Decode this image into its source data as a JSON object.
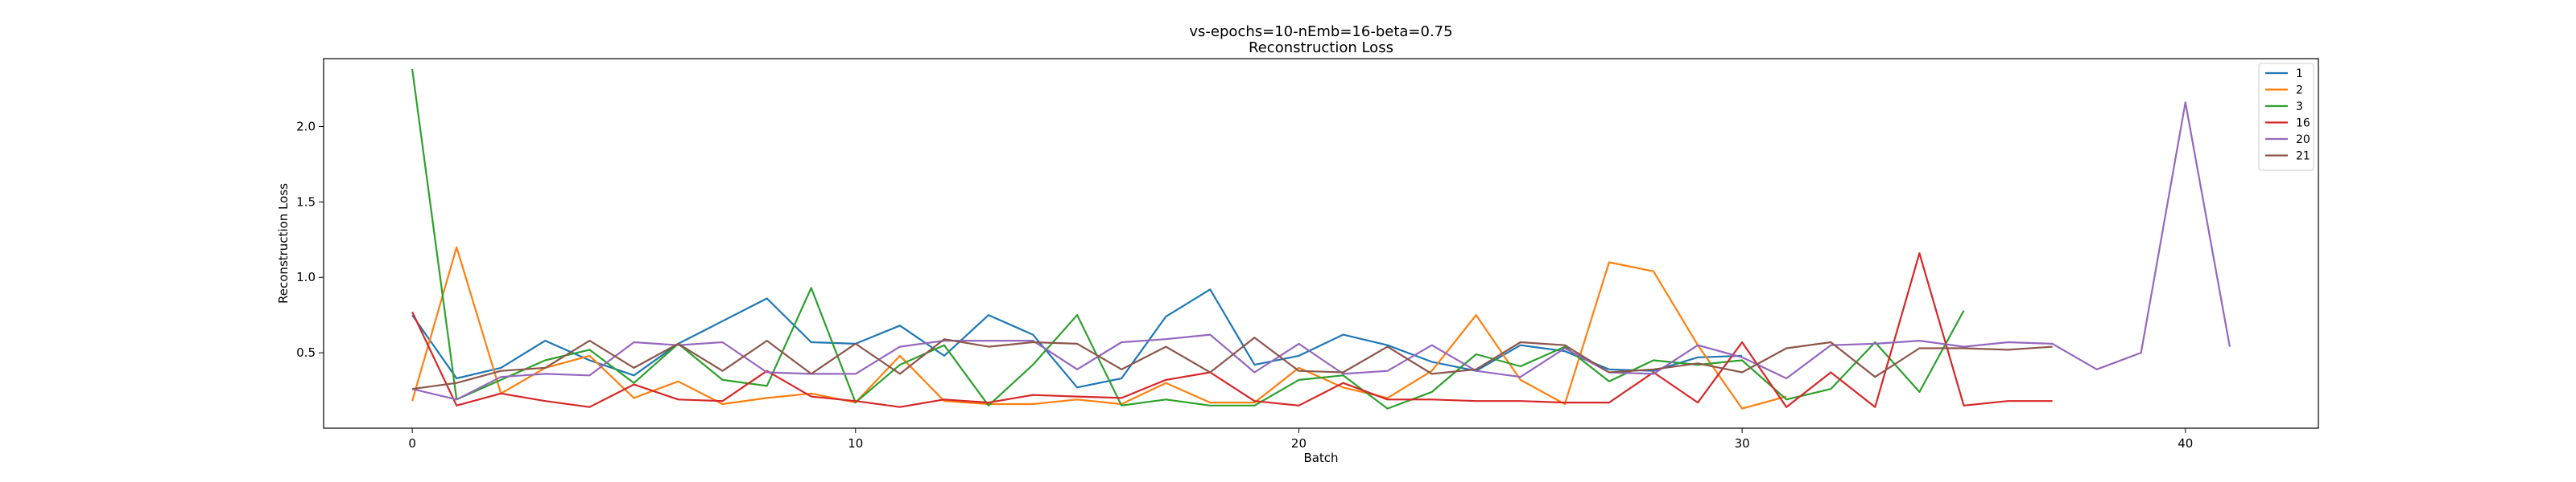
{
  "chart_data": {
    "type": "line",
    "title": "vs-epochs=10-nEmb=16-beta=0.75",
    "subtitle": "Reconstruction Loss",
    "xlabel": "Batch",
    "ylabel": "Reconstruction Loss",
    "xlim": [
      -2,
      43
    ],
    "ylim": [
      0.0,
      2.45
    ],
    "xticks": [
      "0",
      "10",
      "20",
      "30",
      "40"
    ],
    "yticks": [
      "0.5",
      "1.0",
      "1.5",
      "2.0"
    ],
    "xtick_values": [
      0,
      10,
      20,
      30,
      40
    ],
    "ytick_values": [
      0.5,
      1.0,
      1.5,
      2.0
    ],
    "grid": false,
    "legend_position": "top-right",
    "series": [
      {
        "name": "1",
        "color": "#1f77b4",
        "values": [
          0.75,
          0.33,
          0.4,
          0.58,
          0.45,
          0.35,
          0.56,
          0.71,
          0.86,
          0.57,
          0.56,
          0.68,
          0.48,
          0.75,
          0.62,
          0.27,
          0.33,
          0.74,
          0.92,
          0.42,
          0.48,
          0.62,
          0.55,
          0.44,
          0.38,
          0.55,
          0.51,
          0.39,
          0.38,
          0.47,
          0.48
        ]
      },
      {
        "name": "2",
        "color": "#ff7f0e",
        "values": [
          0.18,
          1.2,
          0.23,
          0.4,
          0.48,
          0.2,
          0.31,
          0.16,
          0.2,
          0.23,
          0.17,
          0.48,
          0.18,
          0.16,
          0.16,
          0.19,
          0.16,
          0.3,
          0.17,
          0.17,
          0.4,
          0.27,
          0.2,
          0.38,
          0.75,
          0.32,
          0.16,
          1.1,
          1.04,
          0.55,
          0.13,
          0.21
        ]
      },
      {
        "name": "3",
        "color": "#2ca02c",
        "values": [
          2.38,
          0.19,
          0.32,
          0.45,
          0.52,
          0.3,
          0.56,
          0.32,
          0.28,
          0.93,
          0.17,
          0.42,
          0.55,
          0.15,
          0.42,
          0.75,
          0.15,
          0.19,
          0.15,
          0.15,
          0.32,
          0.35,
          0.13,
          0.24,
          0.49,
          0.41,
          0.54,
          0.31,
          0.45,
          0.42,
          0.45,
          0.19,
          0.26,
          0.57,
          0.24,
          0.78
        ]
      },
      {
        "name": "16",
        "color": "#d62728",
        "values": [
          0.77,
          0.15,
          0.23,
          0.18,
          0.14,
          0.29,
          0.19,
          0.18,
          0.38,
          0.21,
          0.18,
          0.14,
          0.19,
          0.17,
          0.22,
          0.21,
          0.2,
          0.32,
          0.37,
          0.18,
          0.15,
          0.3,
          0.19,
          0.19,
          0.18,
          0.18,
          0.17,
          0.17,
          0.37,
          0.17,
          0.57,
          0.14,
          0.37,
          0.14,
          1.16,
          0.15,
          0.18,
          0.18
        ]
      },
      {
        "name": "20",
        "color": "#9467bd",
        "values": [
          0.26,
          0.19,
          0.34,
          0.36,
          0.35,
          0.57,
          0.55,
          0.57,
          0.37,
          0.36,
          0.36,
          0.54,
          0.58,
          0.58,
          0.58,
          0.39,
          0.57,
          0.59,
          0.62,
          0.37,
          0.56,
          0.36,
          0.38,
          0.55,
          0.38,
          0.34,
          0.53,
          0.37,
          0.36,
          0.55,
          0.47,
          0.33,
          0.55,
          0.56,
          0.58,
          0.54,
          0.57,
          0.56,
          0.39,
          0.5,
          2.16,
          0.54
        ]
      },
      {
        "name": "21",
        "color": "#8c564b",
        "values": [
          0.26,
          0.3,
          0.38,
          0.4,
          0.58,
          0.4,
          0.56,
          0.38,
          0.58,
          0.36,
          0.56,
          0.36,
          0.59,
          0.54,
          0.57,
          0.56,
          0.39,
          0.54,
          0.37,
          0.6,
          0.38,
          0.37,
          0.54,
          0.36,
          0.39,
          0.57,
          0.55,
          0.37,
          0.39,
          0.43,
          0.37,
          0.53,
          0.57,
          0.34,
          0.53,
          0.53,
          0.52,
          0.54
        ]
      }
    ]
  }
}
